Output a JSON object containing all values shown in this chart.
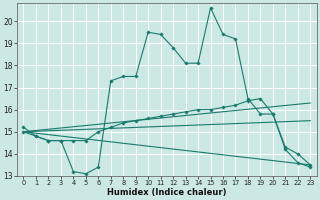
{
  "xlabel": "Humidex (Indice chaleur)",
  "bg_color": "#cce8e4",
  "grid_color": "#aad4ce",
  "line_color": "#1a7a6e",
  "x_min": -0.5,
  "x_max": 23.5,
  "y_min": 13,
  "y_max": 20.8,
  "yticks": [
    13,
    14,
    15,
    16,
    17,
    18,
    19,
    20
  ],
  "xticks": [
    0,
    1,
    2,
    3,
    4,
    5,
    6,
    7,
    8,
    9,
    10,
    11,
    12,
    13,
    14,
    15,
    16,
    17,
    18,
    19,
    20,
    21,
    22,
    23
  ],
  "lines": [
    {
      "x": [
        0,
        1,
        2,
        3,
        4,
        5,
        6,
        7,
        8,
        9,
        10,
        11,
        12,
        13,
        14,
        15,
        16,
        17,
        18,
        19,
        20,
        21,
        22,
        23
      ],
      "y": [
        15.2,
        14.8,
        14.6,
        14.6,
        13.2,
        13.1,
        13.4,
        17.3,
        17.5,
        17.5,
        19.5,
        19.4,
        18.8,
        18.1,
        18.1,
        20.6,
        19.4,
        19.2,
        16.5,
        15.8,
        15.8,
        14.3,
        14.0,
        13.5
      ],
      "marker": true
    },
    {
      "x": [
        0,
        1,
        2,
        3,
        4,
        5,
        6,
        7,
        8,
        9,
        10,
        11,
        12,
        13,
        14,
        15,
        16,
        17,
        18,
        19,
        20,
        21,
        22,
        23
      ],
      "y": [
        15.0,
        14.8,
        14.6,
        14.6,
        14.6,
        14.6,
        15.0,
        15.2,
        15.4,
        15.5,
        15.6,
        15.7,
        15.8,
        15.9,
        16.0,
        16.0,
        16.1,
        16.2,
        16.4,
        16.5,
        15.8,
        14.2,
        13.6,
        13.4
      ],
      "marker": true
    },
    {
      "x": [
        0,
        23
      ],
      "y": [
        15.0,
        16.3
      ],
      "marker": false
    },
    {
      "x": [
        0,
        23
      ],
      "y": [
        15.0,
        15.5
      ],
      "marker": false
    },
    {
      "x": [
        0,
        23
      ],
      "y": [
        15.0,
        13.5
      ],
      "marker": false
    }
  ]
}
